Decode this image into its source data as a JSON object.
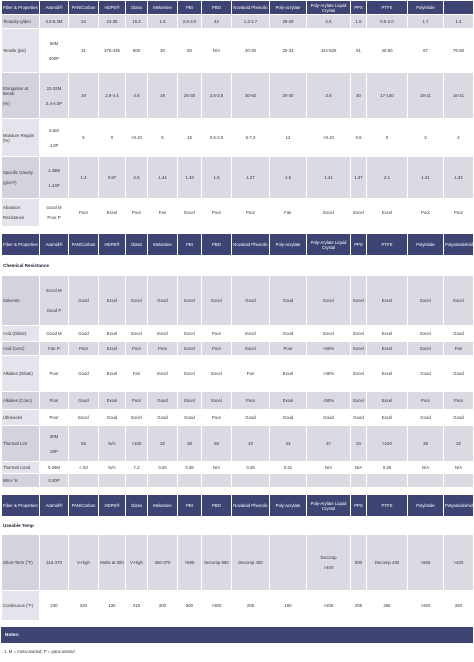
{
  "tables": [
    {
      "header": [
        "Fiber & Properties",
        "Aramid®",
        "PAN/Carbon",
        "HDPE®",
        "Glass",
        "Melamine",
        "PBI",
        "PBO",
        "Novaloid Phenolic",
        "Poly-acrylate",
        "Poly-Arylate Liquid Crystal",
        "PPS",
        "PTFE",
        "Polyimide",
        ""
      ],
      "rows": [
        {
          "label": "Tenacity-g/den",
          "cells": [
            "4.0-5.3M",
            "24",
            "24-35",
            "15.3",
            "1.8",
            "2.6-3.0",
            "42",
            "1.3-1.7",
            "26-29",
            "2.5",
            "1.5",
            "0.5-2.0",
            "1.7",
            "1.4"
          ]
        },
        {
          "label": "Tensile (psi)",
          "cells": [
            "50M\n\n\n400P",
            "31",
            "375-435",
            "500",
            "30",
            "50",
            "N/A",
            "20-30",
            "25-33",
            "424-525",
            "61",
            "40-50",
            "67",
            "75-80"
          ]
        },
        {
          "label": "Elongation at Break\n\n(%)",
          "cells": [
            "22-32M\n\n\n2.4-4.0P",
            "19",
            "2.8-4.4",
            "4.8",
            "18",
            "25-30",
            "2.5-3.5",
            "30-60",
            "20-30",
            "3.8",
            "40",
            "17-140",
            "19-21",
            "16-21"
          ]
        },
        {
          "label": "Moisture Regain (%)",
          "cells": [
            "6.5M\n\n\n4.0P",
            "5",
            "0",
            "<0.10",
            "5",
            "15",
            "0.6-2.0",
            "6-7.3",
            "12",
            "<0.10",
            "0.6",
            "0",
            "3",
            "4"
          ]
        },
        {
          "label": "Specific Gravity\n\n(g/cm³)",
          "cells": [
            "1.38M\n\n\n1.44P",
            "1.4",
            "0.97",
            "2.5",
            "1.44",
            "1.43",
            "1.5",
            "1.27",
            "1.5",
            "1.41",
            "1.37",
            "2.1",
            "1.41",
            "1.34"
          ]
        },
        {
          "label": "Abrasion\n\nResistance",
          "cells": [
            "Good M\n\nPoor P",
            "Poor",
            "Excel",
            "Poor",
            "Fair",
            "Excel",
            "Poor",
            "Poor",
            "Fair",
            "Excel",
            "Excel",
            "Excel",
            "Poor",
            "Poor"
          ]
        }
      ]
    },
    {
      "header": [
        "Fiber & Properties",
        "Aramid®",
        "PAN/Carbon",
        "HDPE®",
        "Glass",
        "Melamine",
        "PBI",
        "PBO",
        "Novaloid Phenolic",
        "Poly-acrylate",
        "Poly-Arylate Liquid Crystal",
        "PPS",
        "PTFE",
        "Polyimide",
        "Polyamideimide"
      ],
      "section": "Chemical Resistance",
      "rows": [
        {
          "label": "Solvents",
          "cells": [
            "Excel M\n\n\n\nGood P",
            "Good",
            "Excel",
            "Excel",
            "Good",
            "Excel",
            "Excel",
            "Good",
            "Good",
            "Excel",
            "Excel",
            "Excel",
            "Excel",
            "Excel"
          ]
        },
        {
          "label": "Acid (Dilute)",
          "cells": [
            "Good M",
            "Good",
            "Excel",
            "Excel",
            "Excel",
            "Excel",
            "Poor",
            "Excel",
            "Good",
            "Excel",
            "Excel",
            "Excel",
            "Excel",
            "Good"
          ]
        },
        {
          "label": "Acid (conc)",
          "cells": [
            "Fair P",
            "Poor",
            "Excel",
            "Poor",
            "Poor",
            "Excel",
            "Poor",
            "Excel",
            "Poor",
            "<50%",
            "Excel",
            "Excel",
            "Excel",
            "Fair"
          ]
        },
        {
          "label": "Alkalies (Dilute)",
          "cells": [
            "Poor",
            "Good",
            "Excel",
            "Fair",
            "Excel",
            "Excel",
            "Excel",
            "Fair",
            "Excel",
            ">30%",
            "Excel",
            "Excel",
            "Good",
            "Good"
          ]
        },
        {
          "label": "Alkalies (Conc)",
          "cells": [
            "Poor",
            "Good",
            "Excel",
            "Poor",
            "Good",
            "Excel",
            "Excel",
            "Poor",
            "Excel",
            "<50%",
            "Excel",
            "Excel",
            "Poor",
            "Poor"
          ]
        },
        {
          "label": "Ultraviolet",
          "cells": [
            "Poor",
            "Excel",
            "Good",
            "Excel",
            "Good",
            "Good",
            "Poor",
            "Good",
            "Good",
            "Good",
            "Good",
            "Excel",
            "Good",
            "Good"
          ]
        },
        {
          "label": "Thermal LOI",
          "cells": [
            "30M\n\n\n29P",
            "55",
            "N/A",
            ">100",
            "32",
            "38",
            "68",
            "33",
            "43",
            "37",
            "34",
            ">100",
            "38",
            "32"
          ]
        },
        {
          "label": "Thermal Cond",
          "cells": [
            "0.26M",
            "<.03",
            "N/A",
            "7.2",
            "0.20",
            "0.38",
            "N/A",
            "0.28",
            "0.31",
            "N/A",
            "N/A",
            "0.25",
            "N/A",
            "N/A"
          ]
        },
        {
          "label": "W/m·°K",
          "cells": [
            "0.30P",
            "",
            "",
            "",
            "",
            "",
            "",
            "",
            "",
            "",
            "",
            "",
            "",
            ""
          ]
        }
      ]
    },
    {
      "header": [
        "Fiber & Properties",
        "Aramid®",
        "PAN/Carbon",
        "HDPE®",
        "Glass",
        "Melamine",
        "PBI",
        "PBO",
        "Novaloid Phenolic",
        "Poly-acrylate",
        "Poly-Arylate Liquid Crystal",
        "PPS",
        "PTFE",
        "Polyimide",
        "Polyamideimide"
      ],
      "section": "Useable Temp",
      "rows": [
        {
          "label": "Short-Term (°F)",
          "cells": [
            "315-370",
            "V-High",
            "Melts at 300",
            "V-High",
            "260-370",
            ">595",
            "Decomp 850",
            "Decomp 400",
            "",
            "Decomp\n\n>400",
            "500",
            "Decomp 430",
            ">665",
            ">400"
          ]
        },
        {
          "label": "Continuous (°F)",
          "cells": [
            "230",
            "220",
            "130",
            "315",
            "200",
            "500",
            ">300",
            "205",
            "160",
            ">205",
            "205",
            "266",
            ">260",
            "260"
          ]
        }
      ]
    }
  ],
  "notes": {
    "title": "Notes:",
    "items": [
      "1. M = meta-aramid; P = para-aramid"
    ]
  }
}
